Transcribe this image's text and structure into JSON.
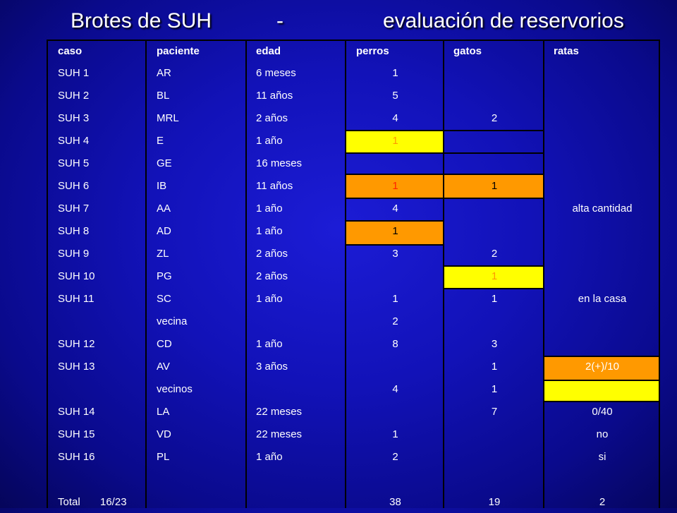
{
  "title": {
    "part1": "Brotes de SUH",
    "part2": "-",
    "part3": "evaluación de reservorios"
  },
  "headers": [
    "caso",
    "paciente",
    "edad",
    "perros",
    "gatos",
    "ratas"
  ],
  "colors": {
    "background": "#1414c0",
    "yellow": "#ffff00",
    "orange": "#ff9900",
    "text": "#ffffff"
  },
  "rows": [
    {
      "caso": "SUH 1",
      "paciente": "AR",
      "edad": "6 meses",
      "perros": "1",
      "gatos": "",
      "ratas": ""
    },
    {
      "caso": "SUH 2",
      "paciente": "BL",
      "edad": "11 años",
      "perros": "5",
      "gatos": "",
      "ratas": ""
    },
    {
      "caso": "SUH 3",
      "paciente": "MRL",
      "edad": "2 años",
      "perros": "4",
      "gatos": "2",
      "ratas": ""
    },
    {
      "caso": "SUH 4",
      "paciente": "E",
      "edad": "1 año",
      "perros": "1",
      "gatos": "",
      "ratas": ""
    },
    {
      "caso": "SUH 5",
      "paciente": "GE",
      "edad": "16 meses",
      "perros": "",
      "gatos": "",
      "ratas": ""
    },
    {
      "caso": "SUH 6",
      "paciente": "IB",
      "edad": "11 años",
      "perros": "1",
      "gatos": "1",
      "ratas": ""
    },
    {
      "caso": "SUH 7",
      "paciente": "AA",
      "edad": "1 año",
      "perros": "4",
      "gatos": "",
      "ratas": "alta cantidad"
    },
    {
      "caso": "SUH 8",
      "paciente": "AD",
      "edad": "1 año",
      "perros": "1",
      "gatos": "",
      "ratas": ""
    },
    {
      "caso": "SUH 9",
      "paciente": "ZL",
      "edad": "2 años",
      "perros": "3",
      "gatos": "2",
      "ratas": ""
    },
    {
      "caso": "SUH 10",
      "paciente": "PG",
      "edad": "2 años",
      "perros": "",
      "gatos": "1",
      "ratas": ""
    },
    {
      "caso": "SUH 11",
      "paciente": "SC",
      "edad": "1 año",
      "perros": "1",
      "gatos": "1",
      "ratas": "en la casa"
    },
    {
      "caso": "",
      "paciente": "vecina",
      "edad": "",
      "perros": "2",
      "gatos": "",
      "ratas": ""
    },
    {
      "caso": "SUH 12",
      "paciente": "CD",
      "edad": "1 año",
      "perros": "8",
      "gatos": "3",
      "ratas": ""
    },
    {
      "caso": "SUH 13",
      "paciente": "AV",
      "edad": "3 años",
      "perros": "",
      "gatos": "1",
      "ratas": "2(+)/10"
    },
    {
      "caso": "",
      "paciente": "vecinos",
      "edad": "",
      "perros": "4",
      "gatos": "1",
      "ratas": ""
    },
    {
      "caso": "SUH 14",
      "paciente": "LA",
      "edad": "22 meses",
      "perros": "",
      "gatos": "7",
      "ratas": "0/40"
    },
    {
      "caso": "SUH 15",
      "paciente": "VD",
      "edad": "22 meses",
      "perros": "1",
      "gatos": "",
      "ratas": "no"
    },
    {
      "caso": "SUH 16",
      "paciente": "PL",
      "edad": "1 año",
      "perros": "2",
      "gatos": "",
      "ratas": "si"
    }
  ],
  "total": {
    "label": "Total",
    "count": "16/23",
    "perros": "38",
    "gatos": "19",
    "ratas": "2"
  }
}
